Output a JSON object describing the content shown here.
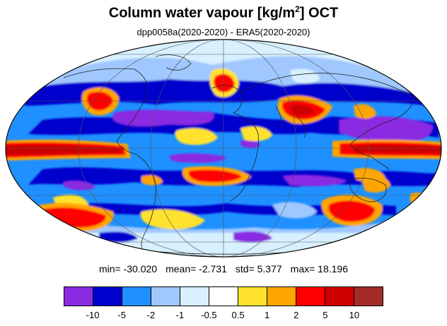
{
  "title": {
    "main": "Column water vapour [kg/m",
    "sup": "2",
    "tail": "] OCT"
  },
  "subtitle": "dpp0058a(2020-2020) - ERA5(2020-2020)",
  "stats": {
    "min": "min= -30.020",
    "mean": "mean= -2.731",
    "std": "std= 5.377",
    "max": "max= 18.196"
  },
  "colorbar": {
    "colors": [
      "#8a2be2",
      "#0000cd",
      "#1e90ff",
      "#a0c8ff",
      "#d8f0ff",
      "#ffffff",
      "#ffe22e",
      "#ffa500",
      "#ff0000",
      "#cd0000",
      "#a52a2a"
    ],
    "labels": [
      "-10",
      "-5",
      "-2",
      "-1",
      "-0.5",
      "0.5",
      "1",
      "2",
      "5",
      "10"
    ]
  },
  "map": {
    "projection": "mollweide",
    "gridlines": true,
    "coastlines": true
  }
}
